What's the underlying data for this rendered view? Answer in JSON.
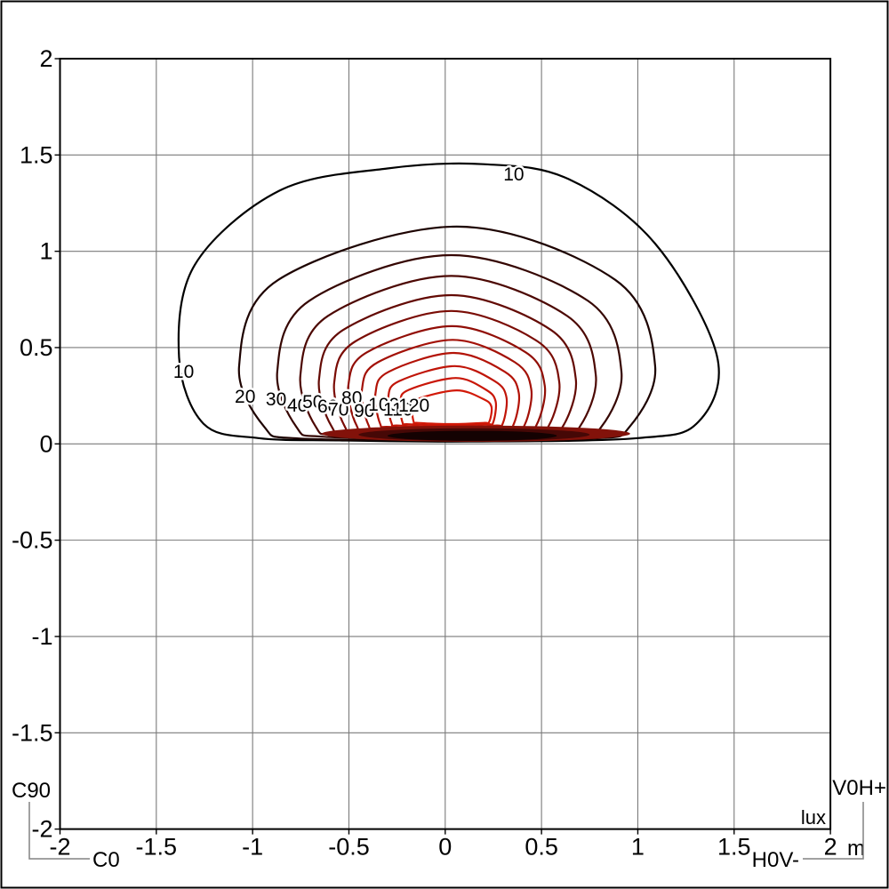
{
  "axes": {
    "x_tick_labels": [
      "-2",
      "-1.5",
      "-1",
      "-0.5",
      "0",
      "0.5",
      "1",
      "1.5",
      "2"
    ],
    "y_tick_labels": [
      "2",
      "1.5",
      "1",
      "0.5",
      "0",
      "-0.5",
      "-1",
      "-1.5",
      "-2"
    ],
    "x_tick_values": [
      -2,
      -1.5,
      -1,
      -0.5,
      0,
      0.5,
      1,
      1.5,
      2
    ],
    "y_tick_values": [
      2,
      1.5,
      1,
      0.5,
      0,
      -0.5,
      -1,
      -1.5,
      -2
    ],
    "distance_unit": "m"
  },
  "corner": {
    "c90": "C90",
    "c0": "C0",
    "v0h": "V0H+",
    "h0v": "H0V-",
    "lux": "lux",
    "m": "m"
  },
  "colors": {
    "grid": "#7a7a7a",
    "plot_border": "#000000",
    "frame": "#000000",
    "connector": "#828282",
    "label_text": "#000000"
  },
  "chart_data": {
    "type": "contour",
    "subtype": "isolux",
    "value_unit": "lux",
    "axis_unit": "m",
    "x_range": [
      -2,
      2
    ],
    "y_range": [
      -2,
      2
    ],
    "tick_step": 0.5,
    "grid": true,
    "legend_position": "none",
    "levels_lux": [
      10,
      20,
      30,
      40,
      50,
      60,
      70,
      80,
      90,
      100,
      110,
      120
    ],
    "contours": [
      {
        "level": 10,
        "label": "10",
        "color": "#000000",
        "points": [
          [
            0.2,
            1.452
          ],
          [
            0.64,
            1.375
          ],
          [
            1.09,
            1.04
          ],
          [
            1.41,
            0.46
          ],
          [
            1.315,
            0.115
          ],
          [
            1.0,
            0.03
          ],
          [
            0.12,
            0.012
          ],
          [
            -0.55,
            0.018
          ],
          [
            -0.97,
            0.03
          ],
          [
            -1.255,
            0.105
          ],
          [
            -1.382,
            0.45
          ],
          [
            -1.3,
            0.93
          ],
          [
            -0.86,
            1.315
          ],
          [
            -0.3,
            1.43
          ]
        ],
        "label_points": [
          [
            -1.358,
            0.376
          ],
          [
            0.356,
            1.4
          ]
        ]
      },
      {
        "level": 20,
        "label": "20",
        "color": "#1d0301",
        "top": 1.128,
        "left": -1.07,
        "right": 1.09,
        "bottom": 0.022,
        "apex_x": 0.06,
        "label_points": [
          [
            -1.039,
            0.247
          ]
        ]
      },
      {
        "level": 30,
        "label": "30",
        "color": "#350602",
        "top": 0.98,
        "left": -0.872,
        "right": 0.915,
        "bottom": 0.031,
        "apex_x": 0.03,
        "label_points": [
          [
            -0.878,
            0.233
          ]
        ]
      },
      {
        "level": 40,
        "label": "40",
        "color": "#4c0803",
        "top": 0.872,
        "left": -0.752,
        "right": 0.782,
        "bottom": 0.04,
        "apex_x": 0.03,
        "label_points": [
          [
            -0.767,
            0.201
          ]
        ]
      },
      {
        "level": 50,
        "label": "50",
        "color": "#630a04",
        "top": 0.772,
        "left": -0.655,
        "right": 0.678,
        "bottom": 0.049,
        "apex_x": 0.03,
        "label_points": [
          [
            -0.688,
            0.219
          ]
        ]
      },
      {
        "level": 60,
        "label": "60",
        "color": "#7a0c05",
        "top": 0.69,
        "left": -0.576,
        "right": 0.592,
        "bottom": 0.058,
        "apex_x": 0.03,
        "label_points": [
          [
            -0.61,
            0.196
          ]
        ]
      },
      {
        "level": 70,
        "label": "70",
        "color": "#910e06",
        "top": 0.611,
        "left": -0.503,
        "right": 0.517,
        "bottom": 0.066,
        "apex_x": 0.035,
        "label_points": [
          [
            -0.554,
            0.178
          ]
        ]
      },
      {
        "level": 80,
        "label": "80",
        "color": "#a31107",
        "top": 0.54,
        "left": -0.432,
        "right": 0.447,
        "bottom": 0.074,
        "apex_x": 0.04,
        "label_points": [
          [
            -0.485,
            0.238
          ]
        ]
      },
      {
        "level": 90,
        "label": "90",
        "color": "#b31307",
        "top": 0.472,
        "left": -0.362,
        "right": 0.382,
        "bottom": 0.082,
        "apex_x": 0.045,
        "label_points": [
          [
            -0.42,
            0.173
          ]
        ]
      },
      {
        "level": 100,
        "label": "100",
        "color": "#c01508",
        "top": 0.404,
        "left": -0.296,
        "right": 0.318,
        "bottom": 0.089,
        "apex_x": 0.05,
        "label_points": [
          [
            -0.319,
            0.205
          ]
        ]
      },
      {
        "level": 110,
        "label": "110",
        "color": "#c91708",
        "top": 0.342,
        "left": -0.233,
        "right": 0.262,
        "bottom": 0.096,
        "apex_x": 0.055,
        "label_points": [
          [
            -0.245,
            0.178
          ]
        ]
      },
      {
        "level": 120,
        "label": "120",
        "color": "#d21908",
        "top": 0.278,
        "left": -0.172,
        "right": 0.24,
        "bottom": 0.103,
        "apex_x": 0.06,
        "label_points": [
          [
            -0.162,
            0.201
          ]
        ]
      }
    ],
    "hotspot_band": {
      "description": "convergence of all isolux lines just above y=0",
      "layers": [
        {
          "cx": 0.16,
          "cy": 0.053,
          "rx": 0.8,
          "ry": 0.042,
          "color": "#82120a"
        },
        {
          "cx": 0.15,
          "cy": 0.048,
          "rx": 0.6,
          "ry": 0.033,
          "color": "#460806"
        },
        {
          "cx": 0.14,
          "cy": 0.042,
          "rx": 0.44,
          "ry": 0.026,
          "color": "#140202"
        }
      ]
    }
  }
}
